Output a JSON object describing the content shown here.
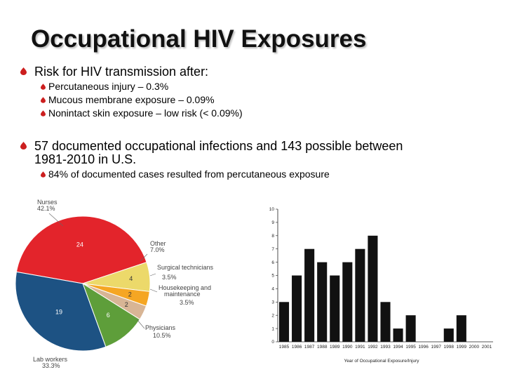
{
  "slide": {
    "title": "Occupational HIV Exposures",
    "bullet1": "Risk for HIV transmission after:",
    "sub1": [
      "Percutaneous injury – 0.3%",
      "Mucous membrane exposure – 0.09%",
      "Nonintact skin exposure – low risk (< 0.09%)"
    ],
    "bullet2_line1": "57 documented occupational infections and 143 possible between",
    "bullet2_line2": "1981-2010 in U.S.",
    "sub2": "84% of documented cases resulted from percutaneous exposure",
    "bullet_color": "#cc1f1f"
  },
  "chart_data": [
    {
      "type": "pie",
      "slices": [
        {
          "label": "Nurses",
          "pct_label": "42.1%",
          "value": 24,
          "color": "#e3242b"
        },
        {
          "label": "Other",
          "pct_label": "7.0%",
          "value": 4,
          "color": "#ecd96a"
        },
        {
          "label": "Surgical technicians",
          "pct_label": "3.5%",
          "value": 2,
          "color": "#f5a623"
        },
        {
          "label": "Housekeeping and maintenance",
          "pct_label": "3.5%",
          "value": 2,
          "color": "#d8b595"
        },
        {
          "label": "Physicians",
          "pct_label": "10.5%",
          "value": 6,
          "color": "#5e9e3a"
        },
        {
          "label": "Lab workers",
          "pct_label": "33.3%",
          "value": 19,
          "color": "#1d5283"
        }
      ]
    },
    {
      "type": "bar",
      "xlabel": "Year of Occupational Exposure/Injury",
      "ylabel": "",
      "ylim": [
        0,
        10
      ],
      "yticks": [
        0,
        1,
        2,
        3,
        4,
        5,
        6,
        7,
        8,
        9,
        10
      ],
      "categories": [
        "1985",
        "1986",
        "1987",
        "1988",
        "1989",
        "1990",
        "1991",
        "1992",
        "1993",
        "1994",
        "1995",
        "1996",
        "1997",
        "1998",
        "1999",
        "2000",
        "2001"
      ],
      "values": [
        3,
        5,
        7,
        6,
        5,
        6,
        7,
        8,
        3,
        1,
        2,
        0,
        0,
        1,
        2,
        0,
        0
      ],
      "bar_color": "#111111",
      "grid": false
    }
  ]
}
